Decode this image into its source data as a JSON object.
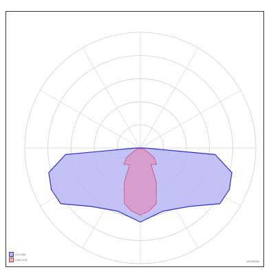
{
  "chart_data": {
    "type": "polar-area",
    "title": "",
    "angles_deg": [
      0,
      30,
      60,
      90,
      120,
      150,
      180,
      210,
      240,
      270,
      300,
      330
    ],
    "radial_rings": 5,
    "series": [
      {
        "name": "C0-C180",
        "color": "#2f2fd0",
        "fill": "#b7b7f5",
        "points": [
          {
            "angle": 0,
            "r": 0.64
          },
          {
            "angle": 20,
            "r": 0.58
          },
          {
            "angle": 40,
            "r": 0.66
          },
          {
            "angle": 55,
            "r": 0.84
          },
          {
            "angle": 65,
            "r": 0.85
          },
          {
            "angle": 75,
            "r": 0.82
          },
          {
            "angle": 85,
            "r": 0.65
          },
          {
            "angle": 90,
            "r": 0.04
          },
          {
            "angle": 270,
            "r": 0.04
          },
          {
            "angle": 275,
            "r": 0.65
          },
          {
            "angle": 285,
            "r": 0.82
          },
          {
            "angle": 295,
            "r": 0.85
          },
          {
            "angle": 305,
            "r": 0.84
          },
          {
            "angle": 320,
            "r": 0.66
          },
          {
            "angle": 340,
            "r": 0.58
          }
        ]
      },
      {
        "name": "C90-C270",
        "color": "#c0306a",
        "fill": "#d999c8",
        "points": [
          {
            "angle": 0,
            "r": 0.58
          },
          {
            "angle": 8,
            "r": 0.55
          },
          {
            "angle": 16,
            "r": 0.5
          },
          {
            "angle": 25,
            "r": 0.33
          },
          {
            "angle": 33,
            "r": 0.17
          },
          {
            "angle": 45,
            "r": 0.2
          },
          {
            "angle": 55,
            "r": 0.15
          },
          {
            "angle": 80,
            "r": 0.03
          },
          {
            "angle": 280,
            "r": 0.03
          },
          {
            "angle": 305,
            "r": 0.15
          },
          {
            "angle": 315,
            "r": 0.2
          },
          {
            "angle": 327,
            "r": 0.17
          },
          {
            "angle": 335,
            "r": 0.33
          },
          {
            "angle": 344,
            "r": 0.5
          },
          {
            "angle": 352,
            "r": 0.55
          }
        ]
      }
    ]
  },
  "legend": [
    {
      "label": "C0-C180",
      "color": "#2f2fd0",
      "fill": "#b7b7f5"
    },
    {
      "label": "C90-C270",
      "color": "#c0306a",
      "fill": "#f2b3a8"
    }
  ],
  "unit_label": "cd/1000lm"
}
